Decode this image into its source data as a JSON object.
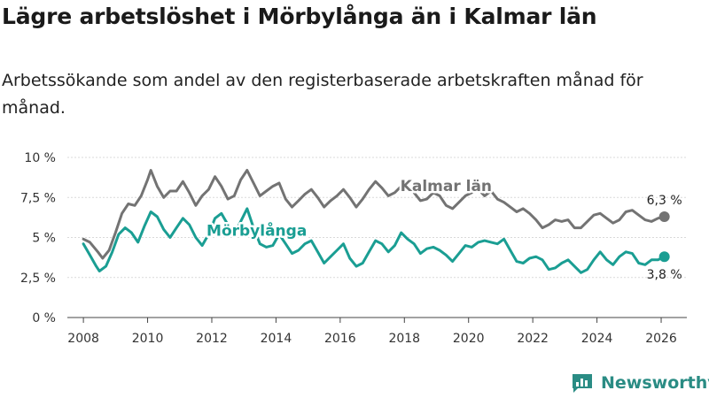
{
  "title": "Lägre arbetslöshet i Mörbylånga än i Kalmar län",
  "subtitle": "Arbetssökande som andel av den registerbaserade arbetskraften månad för månad.",
  "logo": {
    "text": "Newsworthy",
    "icon": "newsworthy-logo-icon"
  },
  "colors": {
    "kalmar": "#737373",
    "morbylanga": "#1a9e93",
    "grid": "#d9d9d9",
    "axis": "#444444",
    "logo": "#2a8c84"
  },
  "chart_data": {
    "type": "line",
    "title": "Lägre arbetslöshet i Mörbylånga än i Kalmar län",
    "xlabel": "",
    "ylabel": "",
    "xlim": [
      2007.5,
      2026.8
    ],
    "ylim": [
      0,
      10
    ],
    "yticks": [
      0,
      2.5,
      5,
      7.5,
      10
    ],
    "ytick_labels": [
      "0 %",
      "2,5 %",
      "5 %",
      "7,5 %",
      "10 %"
    ],
    "xticks": [
      2008,
      2010,
      2012,
      2014,
      2016,
      2018,
      2020,
      2022,
      2024,
      2026
    ],
    "xtick_labels": [
      "2008",
      "2010",
      "2012",
      "2014",
      "2016",
      "2018",
      "2020",
      "2022",
      "2024",
      "2026"
    ],
    "grid": "horizontal",
    "series": [
      {
        "name": "Kalmar län",
        "label_x": 2019.3,
        "label_y": 7.9,
        "end_label": "6,3 %",
        "points": [
          [
            2008.0,
            4.9
          ],
          [
            2008.2,
            4.7
          ],
          [
            2008.45,
            4.1
          ],
          [
            2008.6,
            3.7
          ],
          [
            2008.8,
            4.2
          ],
          [
            2009.0,
            5.3
          ],
          [
            2009.2,
            6.5
          ],
          [
            2009.4,
            7.1
          ],
          [
            2009.6,
            7.0
          ],
          [
            2009.8,
            7.6
          ],
          [
            2010.0,
            8.6
          ],
          [
            2010.1,
            9.2
          ],
          [
            2010.3,
            8.2
          ],
          [
            2010.5,
            7.5
          ],
          [
            2010.7,
            7.9
          ],
          [
            2010.9,
            7.9
          ],
          [
            2011.1,
            8.5
          ],
          [
            2011.3,
            7.8
          ],
          [
            2011.5,
            7.0
          ],
          [
            2011.7,
            7.6
          ],
          [
            2011.9,
            8.0
          ],
          [
            2012.1,
            8.8
          ],
          [
            2012.3,
            8.2
          ],
          [
            2012.5,
            7.4
          ],
          [
            2012.7,
            7.6
          ],
          [
            2012.9,
            8.6
          ],
          [
            2013.1,
            9.2
          ],
          [
            2013.3,
            8.4
          ],
          [
            2013.5,
            7.6
          ],
          [
            2013.7,
            7.9
          ],
          [
            2013.9,
            8.2
          ],
          [
            2014.1,
            8.4
          ],
          [
            2014.3,
            7.4
          ],
          [
            2014.5,
            6.9
          ],
          [
            2014.7,
            7.3
          ],
          [
            2014.9,
            7.7
          ],
          [
            2015.1,
            8.0
          ],
          [
            2015.3,
            7.5
          ],
          [
            2015.5,
            6.9
          ],
          [
            2015.7,
            7.3
          ],
          [
            2015.9,
            7.6
          ],
          [
            2016.1,
            8.0
          ],
          [
            2016.3,
            7.5
          ],
          [
            2016.5,
            6.9
          ],
          [
            2016.7,
            7.4
          ],
          [
            2016.9,
            8.0
          ],
          [
            2017.1,
            8.5
          ],
          [
            2017.3,
            8.1
          ],
          [
            2017.5,
            7.6
          ],
          [
            2017.7,
            7.8
          ],
          [
            2017.9,
            8.2
          ],
          [
            2018.1,
            8.3
          ],
          [
            2018.3,
            7.8
          ],
          [
            2018.5,
            7.3
          ],
          [
            2018.7,
            7.4
          ],
          [
            2018.9,
            7.8
          ],
          [
            2019.1,
            7.6
          ],
          [
            2019.3,
            7.0
          ],
          [
            2019.5,
            6.8
          ],
          [
            2019.7,
            7.2
          ],
          [
            2019.9,
            7.6
          ],
          [
            2020.1,
            7.8
          ],
          [
            2020.3,
            8.0
          ],
          [
            2020.5,
            7.6
          ],
          [
            2020.7,
            7.9
          ],
          [
            2020.9,
            7.4
          ],
          [
            2021.1,
            7.2
          ],
          [
            2021.3,
            6.9
          ],
          [
            2021.5,
            6.6
          ],
          [
            2021.7,
            6.8
          ],
          [
            2021.9,
            6.5
          ],
          [
            2022.1,
            6.1
          ],
          [
            2022.3,
            5.6
          ],
          [
            2022.5,
            5.8
          ],
          [
            2022.7,
            6.1
          ],
          [
            2022.9,
            6.0
          ],
          [
            2023.1,
            6.1
          ],
          [
            2023.3,
            5.6
          ],
          [
            2023.5,
            5.6
          ],
          [
            2023.7,
            6.0
          ],
          [
            2023.9,
            6.4
          ],
          [
            2024.1,
            6.5
          ],
          [
            2024.3,
            6.2
          ],
          [
            2024.5,
            5.9
          ],
          [
            2024.7,
            6.1
          ],
          [
            2024.9,
            6.6
          ],
          [
            2025.1,
            6.7
          ],
          [
            2025.3,
            6.4
          ],
          [
            2025.5,
            6.1
          ],
          [
            2025.7,
            6.0
          ],
          [
            2025.9,
            6.2
          ],
          [
            2026.1,
            6.3
          ]
        ]
      },
      {
        "name": "Mörbylånga",
        "label_x": 2013.4,
        "label_y": 5.1,
        "end_label": "3,8 %",
        "points": [
          [
            2008.0,
            4.6
          ],
          [
            2008.2,
            3.9
          ],
          [
            2008.4,
            3.2
          ],
          [
            2008.5,
            2.9
          ],
          [
            2008.7,
            3.2
          ],
          [
            2008.9,
            4.1
          ],
          [
            2009.1,
            5.2
          ],
          [
            2009.3,
            5.6
          ],
          [
            2009.5,
            5.3
          ],
          [
            2009.7,
            4.7
          ],
          [
            2009.9,
            5.7
          ],
          [
            2010.1,
            6.6
          ],
          [
            2010.3,
            6.3
          ],
          [
            2010.5,
            5.5
          ],
          [
            2010.7,
            5.0
          ],
          [
            2010.9,
            5.6
          ],
          [
            2011.1,
            6.2
          ],
          [
            2011.3,
            5.8
          ],
          [
            2011.5,
            5.0
          ],
          [
            2011.7,
            4.5
          ],
          [
            2011.9,
            5.2
          ],
          [
            2012.1,
            6.2
          ],
          [
            2012.3,
            6.5
          ],
          [
            2012.5,
            5.8
          ],
          [
            2012.7,
            5.2
          ],
          [
            2012.9,
            6.0
          ],
          [
            2013.1,
            6.8
          ],
          [
            2013.3,
            5.6
          ],
          [
            2013.5,
            4.6
          ],
          [
            2013.7,
            4.4
          ],
          [
            2013.9,
            4.5
          ],
          [
            2014.1,
            5.2
          ],
          [
            2014.3,
            4.6
          ],
          [
            2014.5,
            4.0
          ],
          [
            2014.7,
            4.2
          ],
          [
            2014.9,
            4.6
          ],
          [
            2015.1,
            4.8
          ],
          [
            2015.3,
            4.1
          ],
          [
            2015.5,
            3.4
          ],
          [
            2015.7,
            3.8
          ],
          [
            2015.9,
            4.2
          ],
          [
            2016.1,
            4.6
          ],
          [
            2016.3,
            3.7
          ],
          [
            2016.5,
            3.2
          ],
          [
            2016.7,
            3.4
          ],
          [
            2016.9,
            4.1
          ],
          [
            2017.1,
            4.8
          ],
          [
            2017.3,
            4.6
          ],
          [
            2017.5,
            4.1
          ],
          [
            2017.7,
            4.5
          ],
          [
            2017.9,
            5.3
          ],
          [
            2018.1,
            4.9
          ],
          [
            2018.3,
            4.6
          ],
          [
            2018.5,
            4.0
          ],
          [
            2018.7,
            4.3
          ],
          [
            2018.9,
            4.4
          ],
          [
            2019.1,
            4.2
          ],
          [
            2019.3,
            3.9
          ],
          [
            2019.5,
            3.5
          ],
          [
            2019.7,
            4.0
          ],
          [
            2019.9,
            4.5
          ],
          [
            2020.1,
            4.4
          ],
          [
            2020.3,
            4.7
          ],
          [
            2020.5,
            4.8
          ],
          [
            2020.7,
            4.7
          ],
          [
            2020.9,
            4.6
          ],
          [
            2021.1,
            4.9
          ],
          [
            2021.3,
            4.2
          ],
          [
            2021.5,
            3.5
          ],
          [
            2021.7,
            3.4
          ],
          [
            2021.9,
            3.7
          ],
          [
            2022.1,
            3.8
          ],
          [
            2022.3,
            3.6
          ],
          [
            2022.5,
            3.0
          ],
          [
            2022.7,
            3.1
          ],
          [
            2022.9,
            3.4
          ],
          [
            2023.1,
            3.6
          ],
          [
            2023.3,
            3.2
          ],
          [
            2023.5,
            2.8
          ],
          [
            2023.7,
            3.0
          ],
          [
            2023.9,
            3.6
          ],
          [
            2024.1,
            4.1
          ],
          [
            2024.3,
            3.6
          ],
          [
            2024.5,
            3.3
          ],
          [
            2024.7,
            3.8
          ],
          [
            2024.9,
            4.1
          ],
          [
            2025.1,
            4.0
          ],
          [
            2025.3,
            3.4
          ],
          [
            2025.5,
            3.3
          ],
          [
            2025.7,
            3.6
          ],
          [
            2025.9,
            3.6
          ],
          [
            2026.1,
            3.8
          ]
        ]
      }
    ]
  }
}
